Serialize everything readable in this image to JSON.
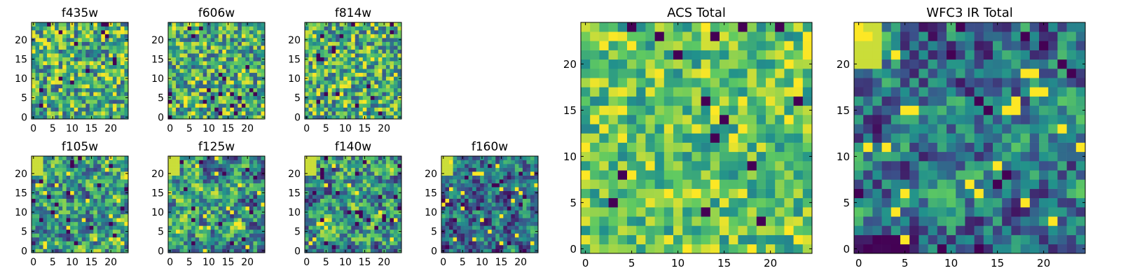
{
  "figure": {
    "colormap": "viridis",
    "colormap_stops": [
      "#440154",
      "#3b528b",
      "#21918c",
      "#5ec962",
      "#fde725"
    ]
  },
  "chart_data": [
    {
      "type": "heatmap",
      "title": "f435w",
      "grid_size": [
        25,
        25
      ],
      "xlim": [
        -0.5,
        24.5
      ],
      "ylim": [
        -0.5,
        24.5
      ],
      "xticks": [
        0,
        5,
        10,
        15,
        20
      ],
      "yticks": [
        0,
        5,
        10,
        15,
        20
      ],
      "xtick_labels": [
        "0",
        "5",
        "10",
        "15",
        "20"
      ],
      "ytick_labels": [
        "0",
        "5",
        "10",
        "15",
        "20"
      ],
      "texture": "fine-noise",
      "seed": 11
    },
    {
      "type": "heatmap",
      "title": "f606w",
      "grid_size": [
        25,
        25
      ],
      "xlim": [
        -0.5,
        24.5
      ],
      "ylim": [
        -0.5,
        24.5
      ],
      "xticks": [
        0,
        5,
        10,
        15,
        20
      ],
      "yticks": [
        0,
        5,
        10,
        15,
        20
      ],
      "xtick_labels": [
        "0",
        "5",
        "10",
        "15",
        "20"
      ],
      "ytick_labels": [
        "0",
        "5",
        "10",
        "15",
        "20"
      ],
      "texture": "fine-noise",
      "seed": 23
    },
    {
      "type": "heatmap",
      "title": "f814w",
      "grid_size": [
        25,
        25
      ],
      "xlim": [
        -0.5,
        24.5
      ],
      "ylim": [
        -0.5,
        24.5
      ],
      "xticks": [
        0,
        5,
        10,
        15,
        20
      ],
      "yticks": [
        0,
        5,
        10,
        15,
        20
      ],
      "xtick_labels": [
        "0",
        "5",
        "10",
        "15",
        "20"
      ],
      "ytick_labels": [
        "0",
        "5",
        "10",
        "15",
        "20"
      ],
      "texture": "fine-noise",
      "seed": 37
    },
    {
      "type": "heatmap",
      "title": "f105w",
      "grid_size": [
        25,
        25
      ],
      "xlim": [
        -0.5,
        24.5
      ],
      "ylim": [
        -0.5,
        24.5
      ],
      "xticks": [
        0,
        5,
        10,
        15,
        20
      ],
      "yticks": [
        0,
        5,
        10,
        15,
        20
      ],
      "xtick_labels": [
        "0",
        "5",
        "10",
        "15",
        "20"
      ],
      "ytick_labels": [
        "0",
        "5",
        "10",
        "15",
        "20"
      ],
      "texture": "smooth-noise",
      "seed": 41
    },
    {
      "type": "heatmap",
      "title": "f125w",
      "grid_size": [
        25,
        25
      ],
      "xlim": [
        -0.5,
        24.5
      ],
      "ylim": [
        -0.5,
        24.5
      ],
      "xticks": [
        0,
        5,
        10,
        15,
        20
      ],
      "yticks": [
        0,
        5,
        10,
        15,
        20
      ],
      "xtick_labels": [
        "0",
        "5",
        "10",
        "15",
        "20"
      ],
      "ytick_labels": [
        "0",
        "5",
        "10",
        "15",
        "20"
      ],
      "texture": "smooth-noise",
      "seed": 53
    },
    {
      "type": "heatmap",
      "title": "f140w",
      "grid_size": [
        25,
        25
      ],
      "xlim": [
        -0.5,
        24.5
      ],
      "ylim": [
        -0.5,
        24.5
      ],
      "xticks": [
        0,
        5,
        10,
        15,
        20
      ],
      "yticks": [
        0,
        5,
        10,
        15,
        20
      ],
      "xtick_labels": [
        "0",
        "5",
        "10",
        "15",
        "20"
      ],
      "ytick_labels": [
        "0",
        "5",
        "10",
        "15",
        "20"
      ],
      "texture": "smooth-noise",
      "seed": 67
    },
    {
      "type": "heatmap",
      "title": "f160w",
      "grid_size": [
        25,
        25
      ],
      "xlim": [
        -0.5,
        24.5
      ],
      "ylim": [
        -0.5,
        24.5
      ],
      "xticks": [
        0,
        5,
        10,
        15,
        20
      ],
      "yticks": [
        0,
        5,
        10,
        15,
        20
      ],
      "xtick_labels": [
        "0",
        "5",
        "10",
        "15",
        "20"
      ],
      "ytick_labels": [
        "0",
        "5",
        "10",
        "15",
        "20"
      ],
      "texture": "smooth-noise-dark",
      "seed": 79
    },
    {
      "type": "heatmap",
      "title": "ACS Total",
      "grid_size": [
        25,
        25
      ],
      "xlim": [
        -0.5,
        24.5
      ],
      "ylim": [
        -0.5,
        24.5
      ],
      "xticks": [
        0,
        5,
        10,
        15,
        20
      ],
      "yticks": [
        0,
        5,
        10,
        15,
        20
      ],
      "xtick_labels": [
        "0",
        "5",
        "10",
        "15",
        "20"
      ],
      "ytick_labels": [
        "0",
        "5",
        "10",
        "15",
        "20"
      ],
      "texture": "bright-noise",
      "seed": 83
    },
    {
      "type": "heatmap",
      "title": "WFC3 IR Total",
      "grid_size": [
        25,
        25
      ],
      "xlim": [
        -0.5,
        24.5
      ],
      "ylim": [
        -0.5,
        24.5
      ],
      "xticks": [
        0,
        5,
        10,
        15,
        20
      ],
      "yticks": [
        0,
        5,
        10,
        15,
        20
      ],
      "xtick_labels": [
        "0",
        "5",
        "10",
        "15",
        "20"
      ],
      "ytick_labels": [
        "0",
        "5",
        "10",
        "15",
        "20"
      ],
      "texture": "smooth-noise-dark",
      "seed": 97
    }
  ]
}
